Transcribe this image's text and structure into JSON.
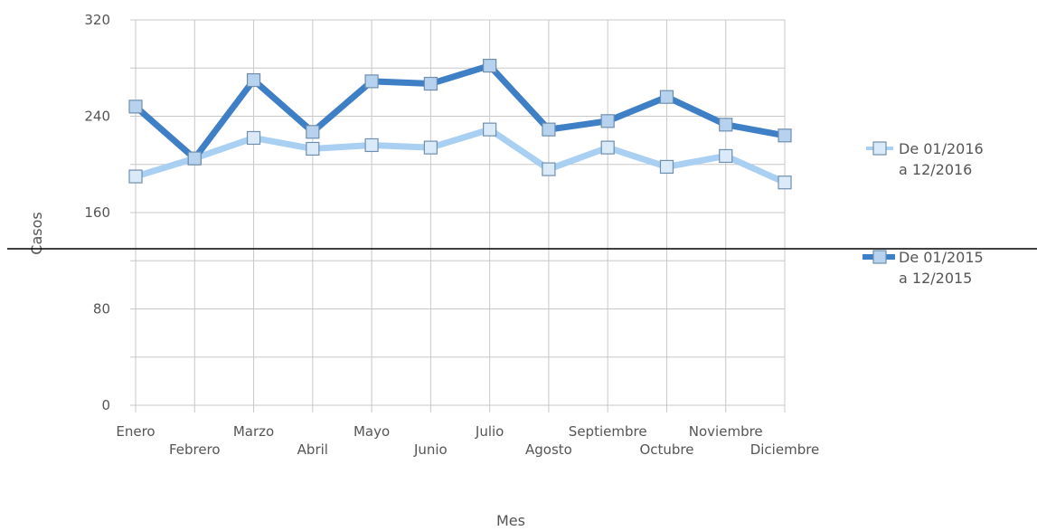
{
  "chart_data": {
    "type": "line",
    "xlabel": "Mes",
    "ylabel": "Casos",
    "ylim": [
      0,
      320
    ],
    "yticks": [
      "0",
      "80",
      "160",
      "240",
      "320"
    ],
    "categories": [
      "Enero",
      "Febrero",
      "Marzo",
      "Abril",
      "Mayo",
      "Junio",
      "Julio",
      "Agosto",
      "Septiembre",
      "Octubre",
      "Noviembre",
      "Diciembre"
    ],
    "grid": true,
    "legend_position": "right",
    "series": [
      {
        "name": "De 01/2016 a 12/2016",
        "legend_lines": [
          "De 01/2016",
          "a 12/2016"
        ],
        "color": "#a9cff2",
        "marker_fill": "#dbeaf8",
        "values": [
          190,
          205,
          222,
          213,
          216,
          214,
          229,
          196,
          214,
          198,
          207,
          185
        ]
      },
      {
        "name": "De 01/2015 a 12/2015",
        "legend_lines": [
          "De 01/2015",
          "a 12/2015"
        ],
        "color": "#3f7fc6",
        "marker_fill": "#b7d2ef",
        "values": [
          248,
          205,
          270,
          227,
          269,
          267,
          282,
          229,
          236,
          256,
          233,
          224
        ]
      }
    ]
  }
}
